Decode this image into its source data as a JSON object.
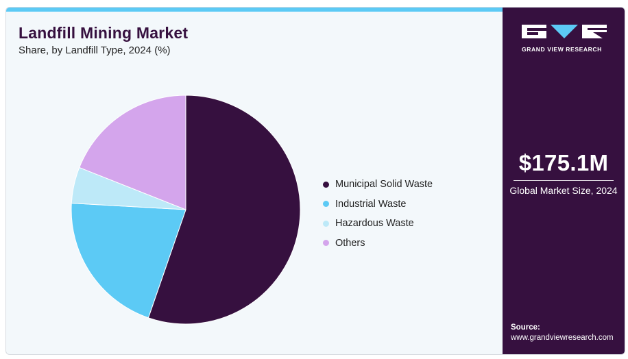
{
  "header": {
    "title": "Landfill Mining Market",
    "subtitle": "Share, by Landfill Type, 2024 (%)"
  },
  "chart_data": {
    "type": "pie",
    "categories": [
      "Municipal Solid Waste",
      "Industrial Waste",
      "Hazardous Waste",
      "Others"
    ],
    "values": [
      55.3,
      20.6,
      5.1,
      19.0
    ],
    "colors": [
      "#36103f",
      "#5ccaf5",
      "#bde9f8",
      "#d4a5ec"
    ],
    "legend_position": "right"
  },
  "sidebar": {
    "brand": "GRAND VIEW RESEARCH",
    "market_size_value": "$175.1M",
    "market_size_label": "Global Market Size, 2024",
    "source_label": "Source:",
    "source_url": "www.grandviewresearch.com"
  }
}
